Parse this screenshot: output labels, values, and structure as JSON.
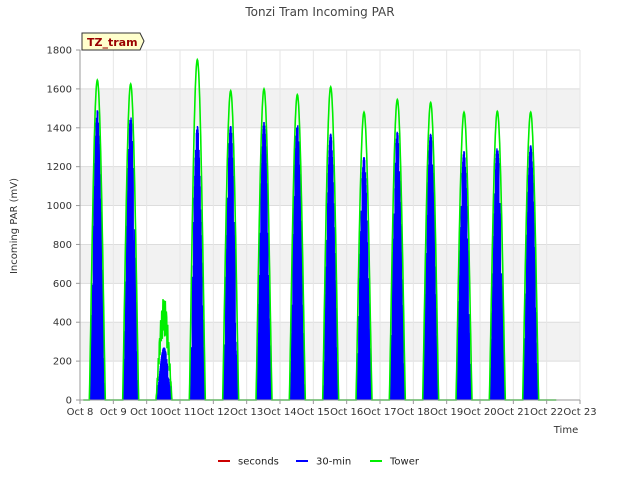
{
  "chart_data": {
    "type": "line",
    "title": "Tonzi Tram Incoming PAR",
    "xlabel": "Time",
    "ylabel": "Incoming PAR (mV)",
    "site_label": "TZ_tram",
    "xlim": [
      8,
      23
    ],
    "ylim": [
      0,
      1800
    ],
    "x_ticks": [
      8,
      9,
      10,
      11,
      12,
      13,
      14,
      15,
      16,
      17,
      18,
      19,
      20,
      21,
      22,
      23
    ],
    "x_tick_labels": [
      "Oct 8",
      "Oct 9",
      "Oct 10",
      "Oct 11",
      "Oct 12",
      "Oct 13",
      "Oct 14",
      "Oct 15",
      "Oct 16",
      "Oct 17",
      "Oct 18",
      "Oct 19",
      "Oct 20",
      "Oct 21",
      "Oct 22",
      "Oct 23"
    ],
    "y_ticks": [
      0,
      200,
      400,
      600,
      800,
      1000,
      1200,
      1400,
      1600,
      1800
    ],
    "y_tick_labels": [
      "0",
      "200",
      "400",
      "600",
      "800",
      "1000",
      "1200",
      "1400",
      "1600",
      "1800"
    ],
    "legend_position": "bottom",
    "series": [
      {
        "name": "seconds",
        "color": "#cc0000",
        "points": []
      },
      {
        "name": "30-min",
        "color": "#0000ff",
        "daily_peaks": [
          {
            "day": 8,
            "peak": 1490
          },
          {
            "day": 9,
            "peak": 1460
          },
          {
            "day": 10,
            "peak": 270
          },
          {
            "day": 11,
            "peak": 1410
          },
          {
            "day": 12,
            "peak": 1410
          },
          {
            "day": 13,
            "peak": 1430
          },
          {
            "day": 14,
            "peak": 1420
          },
          {
            "day": 15,
            "peak": 1370
          },
          {
            "day": 16,
            "peak": 1250
          },
          {
            "day": 17,
            "peak": 1380
          },
          {
            "day": 18,
            "peak": 1370
          },
          {
            "day": 19,
            "peak": 1280
          },
          {
            "day": 20,
            "peak": 1300
          },
          {
            "day": 21,
            "peak": 1310
          }
        ]
      },
      {
        "name": "Tower",
        "color": "#00ee00",
        "daily_peaks": [
          {
            "day": 8,
            "peak": 1645
          },
          {
            "day": 9,
            "peak": 1625
          },
          {
            "day": 10,
            "peak": 530
          },
          {
            "day": 11,
            "peak": 1750
          },
          {
            "day": 12,
            "peak": 1590
          },
          {
            "day": 13,
            "peak": 1600
          },
          {
            "day": 14,
            "peak": 1570
          },
          {
            "day": 15,
            "peak": 1610
          },
          {
            "day": 16,
            "peak": 1480
          },
          {
            "day": 17,
            "peak": 1545
          },
          {
            "day": 18,
            "peak": 1530
          },
          {
            "day": 19,
            "peak": 1480
          },
          {
            "day": 20,
            "peak": 1485
          },
          {
            "day": 21,
            "peak": 1480
          }
        ]
      }
    ]
  }
}
